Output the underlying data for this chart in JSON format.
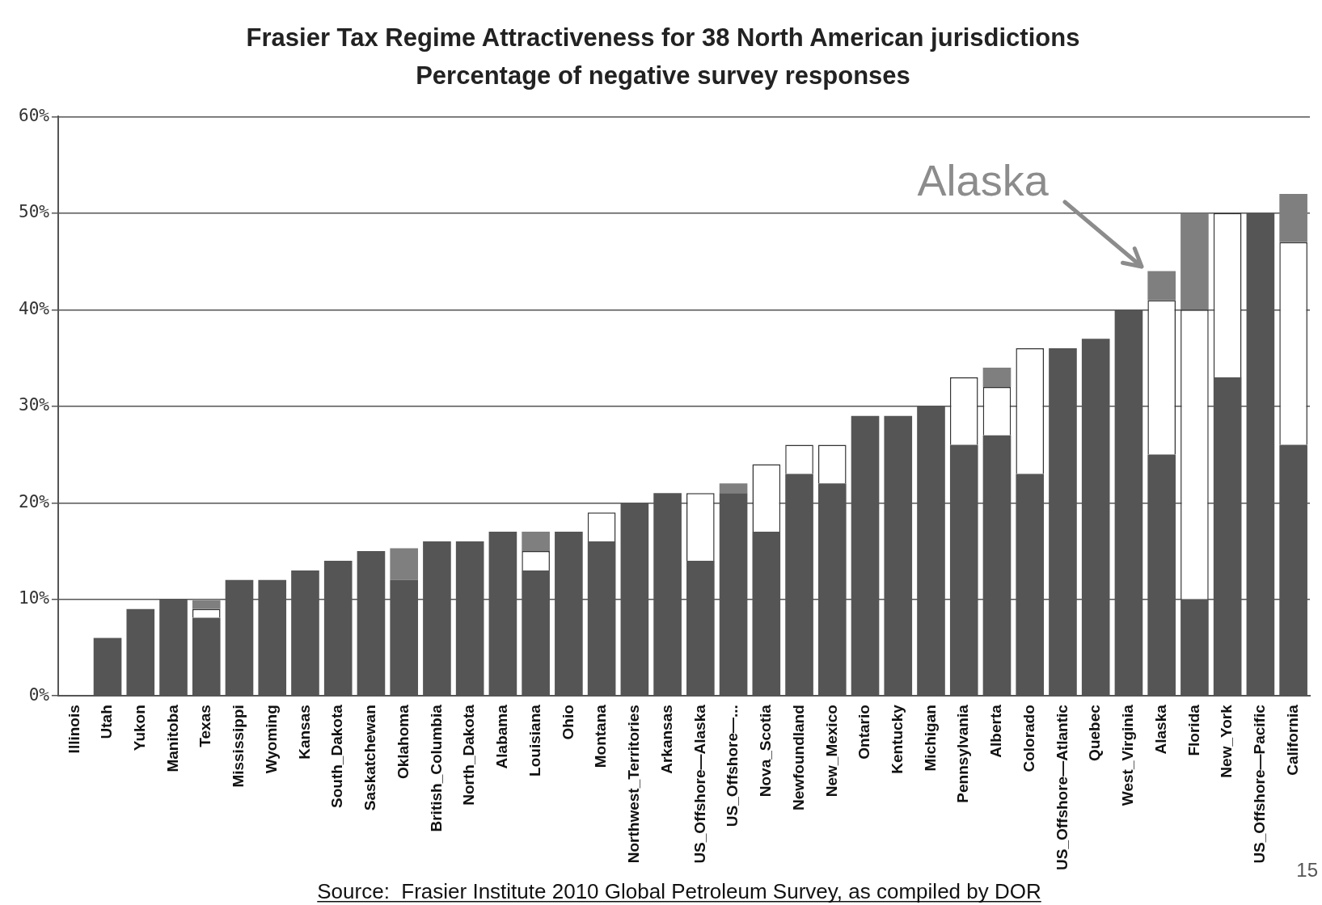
{
  "chart_data": {
    "type": "bar",
    "title": "Frasier Tax Regime Attractiveness for 38 North American jurisdictions",
    "subtitle": "Percentage of negative survey responses",
    "categories": [
      "Illinois",
      "Utah",
      "Yukon",
      "Manitoba",
      "Texas",
      "Mississippi",
      "Wyoming",
      "Kansas",
      "South_Dakota",
      "Saskatchewan",
      "Oklahoma",
      "British_Columbia",
      "North_Dakota",
      "Alabama",
      "Louisiana",
      "Ohio",
      "Montana",
      "Northwest_Territories",
      "Arkansas",
      "US_Offshore—Alaska",
      "US_Offshore—...",
      "Nova_Scotia",
      "Newfoundland",
      "New_Mexico",
      "Ontario",
      "Kentucky",
      "Michigan",
      "Pennsylvania",
      "Alberta",
      "Colorado",
      "US_Offshore—Atlantic",
      "Quebec",
      "West_Virginia",
      "Alaska",
      "Florida",
      "New_York",
      "US_Offshore—Pacific",
      "California"
    ],
    "stacked": true,
    "series": [
      {
        "color": "#555555",
        "values": [
          0,
          6,
          9,
          10,
          8.1,
          12,
          12,
          13,
          14,
          15,
          12,
          16,
          16,
          17,
          13,
          17,
          16,
          20,
          21,
          14,
          21,
          17,
          23,
          22,
          29,
          29,
          30,
          26,
          27,
          23,
          36,
          37,
          40,
          25,
          10,
          33,
          50,
          26
        ]
      },
      {
        "color": "#ffffff",
        "values": [
          0,
          0,
          0,
          0,
          0.9,
          0,
          0,
          0,
          0,
          0,
          0,
          0,
          0,
          0,
          2,
          0,
          3,
          0,
          0,
          7,
          0,
          7,
          3,
          4,
          0,
          0,
          0,
          7,
          5,
          13,
          0,
          0,
          0,
          16,
          30,
          17,
          0,
          21
        ]
      },
      {
        "color": "#7f7f7f",
        "values": [
          0,
          0,
          0,
          0,
          0.9,
          0,
          0,
          0,
          0,
          0,
          3.3,
          0,
          0,
          0,
          2,
          0,
          0,
          0,
          0,
          0,
          1,
          0,
          0,
          0,
          0,
          0,
          0,
          0,
          2,
          0,
          0,
          0,
          0,
          3,
          10,
          0,
          0,
          5
        ]
      }
    ],
    "ylim": [
      0,
      60
    ],
    "yticks": [
      {
        "value": 0,
        "label": "0%"
      },
      {
        "value": 10,
        "label": "10%"
      },
      {
        "value": 20,
        "label": "20%"
      },
      {
        "value": 30,
        "label": "30%"
      },
      {
        "value": 40,
        "label": "40%"
      },
      {
        "value": 50,
        "label": "50%"
      },
      {
        "value": 60,
        "label": "60%"
      }
    ],
    "grid": "y",
    "annotations": [
      {
        "text": "Alaska",
        "x": "Alaska",
        "y": 44
      },
      "Source:  Frasier Institute 2010 Global Petroleum Survey, as compiled by DOR",
      "15"
    ]
  }
}
